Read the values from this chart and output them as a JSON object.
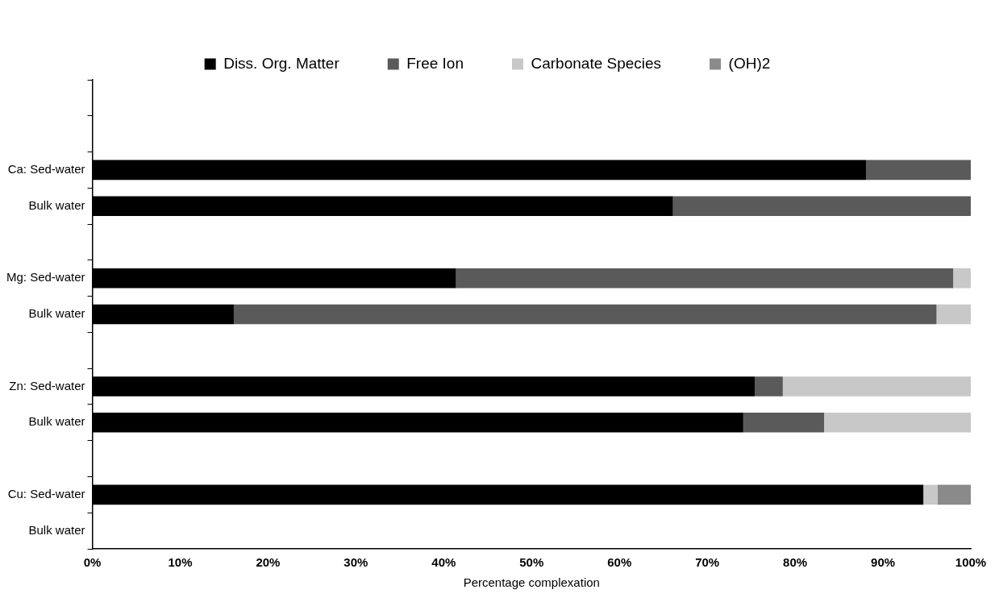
{
  "chart_data": {
    "type": "bar",
    "orientation": "horizontal",
    "stacked": true,
    "xlabel": "Percentage complexation",
    "categories": [
      null,
      null,
      "Ca: Sed-water",
      "Bulk water",
      null,
      "Mg: Sed-water",
      "Bulk water",
      null,
      "Zn: Sed-water",
      "Bulk water",
      null,
      "Cu: Sed-water",
      "Bulk water"
    ],
    "series": [
      {
        "name": "Diss. Org. Matter",
        "color": "#000000",
        "values": [
          null,
          null,
          88.1,
          66.1,
          null,
          41.4,
          16.1,
          null,
          75.4,
          74.1,
          null,
          94.6,
          null
        ]
      },
      {
        "name": "Free Ion",
        "color": "#5a5a5a",
        "values": [
          null,
          null,
          11.9,
          33.9,
          null,
          56.6,
          80.0,
          null,
          3.2,
          9.2,
          null,
          null,
          null
        ]
      },
      {
        "name": "Carbonate Species",
        "color": "#c8c8c8",
        "values": [
          null,
          null,
          null,
          null,
          null,
          2.0,
          3.9,
          null,
          21.4,
          16.7,
          null,
          1.6,
          null
        ]
      },
      {
        "name": "(OH)2",
        "color": "#8a8a8a",
        "values": [
          null,
          null,
          null,
          null,
          null,
          null,
          null,
          null,
          null,
          null,
          null,
          3.8,
          null
        ]
      }
    ],
    "xlim": [
      0,
      100
    ],
    "xticks": [
      {
        "value": 0,
        "label": "0%"
      },
      {
        "value": 10,
        "label": "10%"
      },
      {
        "value": 20,
        "label": "20%"
      },
      {
        "value": 30,
        "label": "30%"
      },
      {
        "value": 40,
        "label": "40%"
      },
      {
        "value": 50,
        "label": "50%"
      },
      {
        "value": 60,
        "label": "60%"
      },
      {
        "value": 70,
        "label": "70%"
      },
      {
        "value": 80,
        "label": "80%"
      },
      {
        "value": 90,
        "label": "90%"
      },
      {
        "value": 100,
        "label": "100%"
      }
    ],
    "grid": false,
    "legend": "top"
  }
}
